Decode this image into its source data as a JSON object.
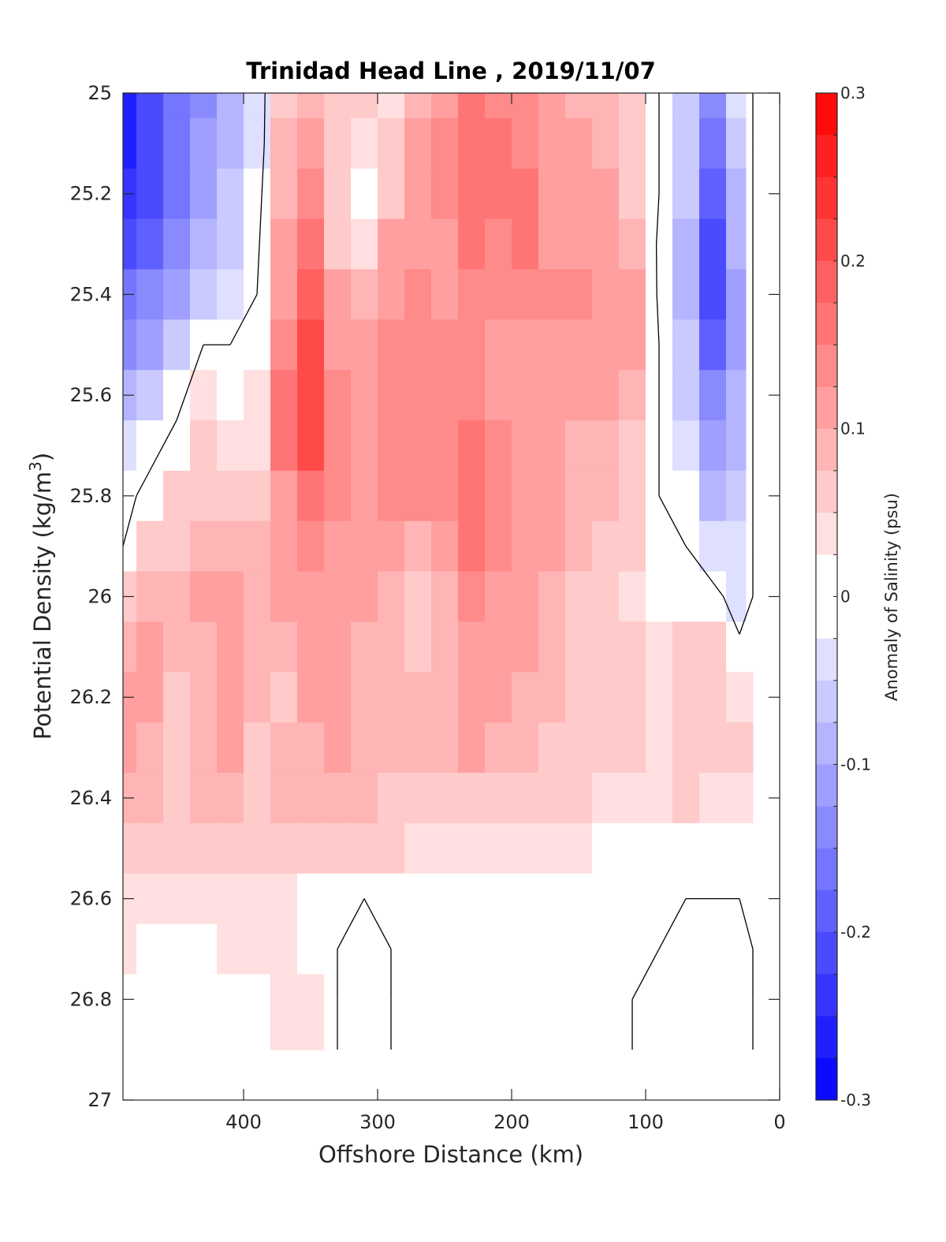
{
  "chart_data": {
    "type": "heatmap",
    "title": "Trinidad Head Line , 2019/11/07",
    "xlabel": "Offshore Distance (km)",
    "ylabel": "Potential Density (kg/m",
    "ylabel_superscript": "3",
    "ylabel_suffix": ")",
    "xlim": [
      490,
      0
    ],
    "ylim": [
      25,
      27
    ],
    "y_reversed": true,
    "x_ticks": [
      400,
      300,
      200,
      100,
      0
    ],
    "y_ticks": [
      25,
      25.2,
      25.4,
      25.6,
      25.8,
      26,
      26.2,
      26.4,
      26.6,
      26.8,
      27
    ],
    "colorbar": {
      "label": "Anomaly of Salinity (psu)",
      "range": [
        -0.3,
        0.3
      ],
      "ticks": [
        0.3,
        0.2,
        0.1,
        0,
        -0.1,
        -0.2,
        -0.3
      ],
      "levels": 24,
      "negative_color": "#0000ff",
      "positive_color": "#ff0000",
      "neutral_color": "#ffffff"
    },
    "data_extent": {
      "x": [
        20,
        490
      ],
      "y": [
        25,
        26.9
      ]
    },
    "grid_x": [
      490,
      470,
      450,
      430,
      410,
      390,
      370,
      350,
      330,
      310,
      290,
      270,
      250,
      230,
      210,
      190,
      170,
      150,
      130,
      110,
      90,
      70,
      50,
      30,
      20
    ],
    "grid_y": [
      25.0,
      25.1,
      25.2,
      25.3,
      25.4,
      25.5,
      25.6,
      25.7,
      25.8,
      25.9,
      26.0,
      26.1,
      26.2,
      26.3,
      26.4,
      26.5,
      26.6,
      26.7,
      26.8,
      26.9
    ],
    "values": [
      [
        -0.26,
        -0.22,
        -0.17,
        -0.13,
        -0.08,
        -0.03,
        0.07,
        0.09,
        0.05,
        0.06,
        0.04,
        0.08,
        0.12,
        0.15,
        0.13,
        0.14,
        0.1,
        0.09,
        0.08,
        0.05,
        0.0,
        -0.06,
        -0.14,
        -0.04,
        0.0
      ],
      [
        -0.25,
        -0.21,
        -0.16,
        -0.12,
        -0.08,
        -0.03,
        0.08,
        0.11,
        0.07,
        0.03,
        0.07,
        0.1,
        0.13,
        0.16,
        0.15,
        0.14,
        0.11,
        0.1,
        0.09,
        0.06,
        0.0,
        -0.07,
        -0.17,
        -0.06,
        0.0
      ],
      [
        -0.23,
        -0.2,
        -0.16,
        -0.11,
        -0.07,
        -0.02,
        0.09,
        0.13,
        0.07,
        0.02,
        0.06,
        0.11,
        0.13,
        0.15,
        0.16,
        0.16,
        0.11,
        0.1,
        0.1,
        0.07,
        0.0,
        -0.07,
        -0.18,
        -0.08,
        0.0
      ],
      [
        -0.2,
        -0.18,
        -0.14,
        -0.1,
        -0.06,
        -0.01,
        0.1,
        0.15,
        0.07,
        0.04,
        0.1,
        0.11,
        0.11,
        0.16,
        0.14,
        0.15,
        0.12,
        0.11,
        0.11,
        0.09,
        -0.01,
        -0.08,
        -0.2,
        -0.1,
        0.0
      ],
      [
        -0.17,
        -0.15,
        -0.11,
        -0.07,
        -0.04,
        0.0,
        0.12,
        0.18,
        0.1,
        0.08,
        0.11,
        0.13,
        0.12,
        0.13,
        0.13,
        0.13,
        0.13,
        0.13,
        0.12,
        0.11,
        -0.01,
        -0.08,
        -0.2,
        -0.12,
        0.0
      ],
      [
        -0.13,
        -0.11,
        -0.07,
        0.0,
        0.0,
        0.01,
        0.14,
        0.2,
        0.12,
        0.11,
        0.13,
        0.13,
        0.13,
        0.14,
        0.12,
        0.12,
        0.12,
        0.12,
        0.11,
        0.1,
        0.0,
        -0.07,
        -0.18,
        -0.12,
        0.0
      ],
      [
        -0.09,
        -0.06,
        -0.02,
        0.04,
        0.02,
        0.03,
        0.15,
        0.22,
        0.13,
        0.11,
        0.14,
        0.13,
        0.13,
        0.14,
        0.12,
        0.11,
        0.12,
        0.11,
        0.1,
        0.08,
        0.0,
        -0.06,
        -0.15,
        -0.1,
        0.0
      ],
      [
        -0.05,
        -0.02,
        0.02,
        0.06,
        0.04,
        0.04,
        0.15,
        0.21,
        0.13,
        0.12,
        0.13,
        0.13,
        0.14,
        0.15,
        0.13,
        0.11,
        0.1,
        0.09,
        0.09,
        0.07,
        0.0,
        -0.04,
        -0.12,
        -0.08,
        0.0
      ],
      [
        -0.02,
        0.02,
        0.05,
        0.07,
        0.07,
        0.06,
        0.12,
        0.17,
        0.13,
        0.12,
        0.13,
        0.13,
        0.13,
        0.17,
        0.14,
        0.12,
        0.1,
        0.09,
        0.08,
        0.06,
        0.0,
        -0.02,
        -0.09,
        -0.07,
        0.0
      ],
      [
        0.0,
        0.05,
        0.06,
        0.08,
        0.09,
        0.08,
        0.11,
        0.14,
        0.12,
        0.11,
        0.1,
        0.08,
        0.11,
        0.15,
        0.14,
        0.12,
        0.1,
        0.08,
        0.07,
        0.05,
        0.0,
        0.0,
        -0.05,
        -0.05,
        0.0
      ],
      [
        0.06,
        0.08,
        0.09,
        0.1,
        0.1,
        0.09,
        0.1,
        0.12,
        0.11,
        0.1,
        0.08,
        0.06,
        0.08,
        0.13,
        0.12,
        0.11,
        0.09,
        0.07,
        0.06,
        0.04,
        0.0,
        0.0,
        0.02,
        -0.03,
        0.0
      ],
      [
        0.09,
        0.1,
        0.08,
        0.09,
        0.1,
        0.09,
        0.08,
        0.11,
        0.1,
        0.09,
        0.08,
        0.06,
        0.09,
        0.12,
        0.11,
        0.1,
        0.08,
        0.07,
        0.06,
        0.05,
        0.03,
        0.06,
        0.06,
        0.01,
        0.0
      ],
      [
        0.1,
        0.11,
        0.05,
        0.08,
        0.11,
        0.08,
        0.06,
        0.1,
        0.1,
        0.09,
        0.09,
        0.08,
        0.09,
        0.11,
        0.1,
        0.09,
        0.08,
        0.07,
        0.06,
        0.05,
        0.03,
        0.07,
        0.07,
        0.04,
        0.04
      ],
      [
        0.1,
        0.09,
        0.07,
        0.08,
        0.1,
        0.07,
        0.08,
        0.09,
        0.1,
        0.08,
        0.09,
        0.08,
        0.09,
        0.1,
        0.09,
        0.08,
        0.07,
        0.06,
        0.05,
        0.05,
        0.04,
        0.06,
        0.06,
        0.05,
        0.05
      ],
      [
        0.08,
        0.08,
        0.07,
        0.08,
        0.08,
        0.06,
        0.08,
        0.08,
        0.08,
        0.08,
        0.07,
        0.07,
        0.07,
        0.07,
        0.07,
        0.06,
        0.05,
        0.05,
        0.04,
        0.04,
        0.04,
        0.05,
        0.04,
        0.03,
        0.03
      ],
      [
        0.05,
        0.05,
        0.05,
        0.05,
        0.05,
        0.05,
        0.05,
        0.05,
        0.05,
        0.05,
        0.05,
        0.04,
        0.04,
        0.04,
        0.04,
        0.04,
        0.03,
        0.03,
        0.02,
        0.02,
        0.01,
        0.01,
        0.01,
        0.0,
        0.0
      ],
      [
        0.03,
        0.03,
        0.03,
        0.03,
        0.04,
        0.03,
        0.03,
        0.02,
        0.01,
        0.0,
        0.0,
        0.01,
        0.01,
        0.01,
        0.01,
        0.0,
        0.0,
        0.0,
        0.0,
        0.0,
        0.0,
        0.0,
        0.0,
        0.0,
        0.0
      ],
      [
        0.03,
        0.02,
        0.0,
        0.01,
        0.03,
        0.03,
        0.03,
        0.02,
        0.0,
        -0.01,
        0.0,
        0.01,
        0.0,
        0.0,
        0.0,
        0.0,
        0.0,
        0.0,
        0.0,
        0.0,
        0.0,
        -0.01,
        -0.02,
        -0.01,
        0.0
      ],
      [
        0.02,
        0.02,
        0.02,
        0.02,
        0.02,
        0.02,
        0.03,
        0.03,
        0.0,
        -0.02,
        0.0,
        0.01,
        0.0,
        0.0,
        0.0,
        0.0,
        0.0,
        0.0,
        0.0,
        0.0,
        -0.02,
        -0.02,
        -0.02,
        -0.02,
        0.0
      ],
      [
        0.0,
        0.0,
        0.02,
        0.02,
        0.02,
        0.02,
        0.03,
        0.03,
        0.0,
        -0.02,
        0.0,
        0.01,
        0.0,
        0.0,
        0.0,
        0.0,
        0.0,
        0.0,
        0.0,
        0.0,
        -0.02,
        -0.02,
        -0.02,
        -0.02,
        0.0
      ]
    ]
  }
}
